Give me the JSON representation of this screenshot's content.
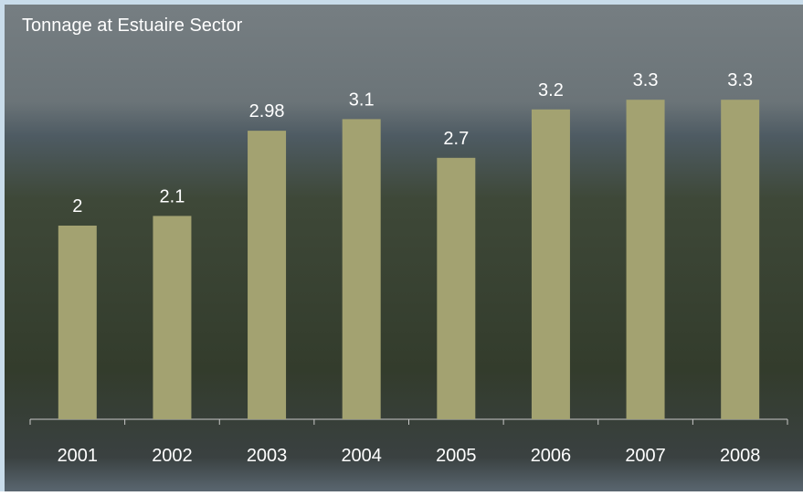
{
  "chart_data": {
    "type": "bar",
    "title": "Tonnage at Estuaire Sector",
    "categories": [
      "2001",
      "2002",
      "2003",
      "2004",
      "2005",
      "2006",
      "2007",
      "2008"
    ],
    "values": [
      2,
      2.1,
      2.98,
      3.1,
      2.7,
      3.2,
      3.3,
      3.3
    ],
    "color": "#a3a271"
  }
}
